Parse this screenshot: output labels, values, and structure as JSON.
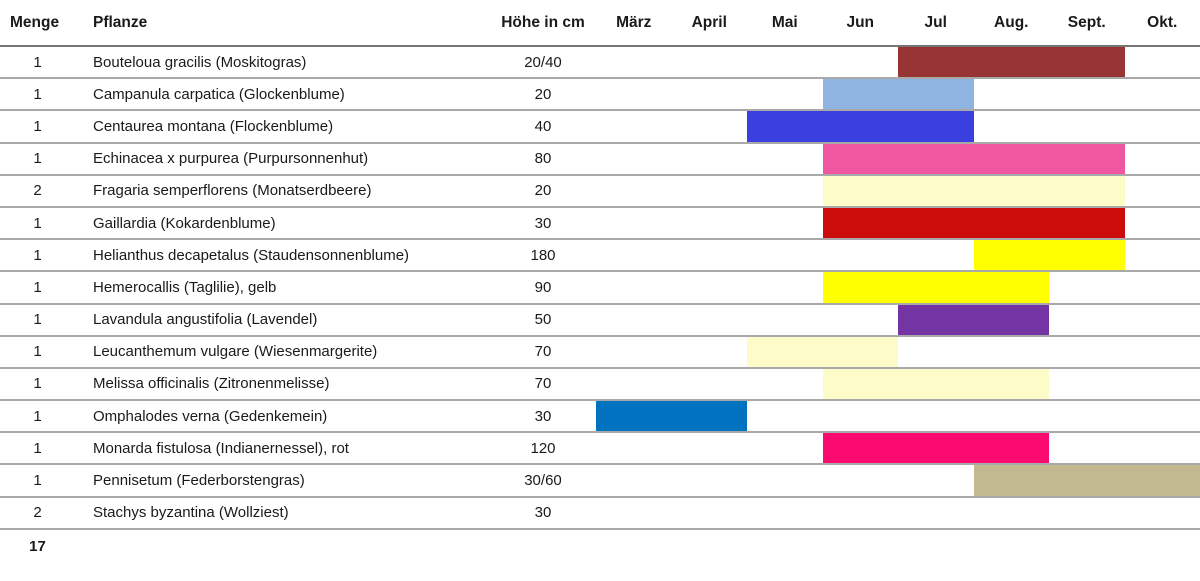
{
  "footer": {
    "total": "17"
  },
  "chart_data": {
    "type": "table",
    "description": "Pflanzliste mit Blühkalender (Gantt-Balken je Monat)",
    "columns": [
      "Menge",
      "Pflanze",
      "Höhe in cm"
    ],
    "months": [
      "März",
      "April",
      "Mai",
      "Jun",
      "Jul",
      "Aug.",
      "Sept.",
      "Okt."
    ],
    "rows": [
      {
        "menge": "1",
        "pflanze": "Bouteloua gracilis (Moskitogras)",
        "hoehe": "20/40",
        "bloom": {
          "from": "Jul",
          "to": "Sept.",
          "color": "#973535"
        }
      },
      {
        "menge": "1",
        "pflanze": "Campanula carpatica (Glockenblume)",
        "hoehe": "20",
        "bloom": {
          "from": "Jun",
          "to": "Jul",
          "color": "#8FB4E2"
        }
      },
      {
        "menge": "1",
        "pflanze": "Centaurea montana (Flockenblume)",
        "hoehe": "40",
        "bloom": {
          "from": "Mai",
          "to": "Jul",
          "color": "#3B3FE0"
        }
      },
      {
        "menge": "1",
        "pflanze": "Echinacea x purpurea (Purpursonnenhut)",
        "hoehe": "80",
        "bloom": {
          "from": "Jun",
          "to": "Sept.",
          "color": "#EF58A0"
        }
      },
      {
        "menge": "2",
        "pflanze": "Fragaria semperflorens (Monatserdbeere)",
        "hoehe": "20",
        "bloom": {
          "from": "Jun",
          "to": "Sept.",
          "color": "#FDFBC8"
        }
      },
      {
        "menge": "1",
        "pflanze": "Gaillardia (Kokardenblume)",
        "hoehe": "30",
        "bloom": {
          "from": "Jun",
          "to": "Sept.",
          "color": "#CC0B0B"
        }
      },
      {
        "menge": "1",
        "pflanze": "Helianthus decapetalus (Staudensonnenblume)",
        "hoehe": "180",
        "bloom": {
          "from": "Aug.",
          "to": "Sept.",
          "color": "#FFFF00"
        }
      },
      {
        "menge": "1",
        "pflanze": "Hemerocallis (Taglilie), gelb",
        "hoehe": "90",
        "bloom": {
          "from": "Jun",
          "to": "Aug.",
          "color": "#FFFF00"
        }
      },
      {
        "menge": "1",
        "pflanze": "Lavandula angustifolia (Lavendel)",
        "hoehe": "50",
        "bloom": {
          "from": "Jul",
          "to": "Aug.",
          "color": "#7434A4"
        }
      },
      {
        "menge": "1",
        "pflanze": "Leucanthemum vulgare (Wiesenmargerite)",
        "hoehe": "70",
        "bloom": {
          "from": "Mai",
          "to": "Jun",
          "color": "#FDFBC8"
        }
      },
      {
        "menge": "1",
        "pflanze": "Melissa officinalis (Zitronenmelisse)",
        "hoehe": "70",
        "bloom": {
          "from": "Jun",
          "to": "Aug.",
          "color": "#FDFBC8"
        }
      },
      {
        "menge": "1",
        "pflanze": "Omphalodes verna (Gedenkemein)",
        "hoehe": "30",
        "bloom": {
          "from": "März",
          "to": "April",
          "color": "#0072C0"
        }
      },
      {
        "menge": "1",
        "pflanze": "Monarda fistulosa (Indianernessel), rot",
        "hoehe": "120",
        "bloom": {
          "from": "Jun",
          "to": "Aug.",
          "color": "#FB0A70"
        }
      },
      {
        "menge": "1",
        "pflanze": "Pennisetum (Federborstengras)",
        "hoehe": "30/60",
        "bloom": {
          "from": "Aug.",
          "to": "Okt.",
          "color": "#C3B98F"
        }
      },
      {
        "menge": "2",
        "pflanze": "Stachys byzantina (Wollziest)",
        "hoehe": "30",
        "bloom": null
      }
    ]
  }
}
